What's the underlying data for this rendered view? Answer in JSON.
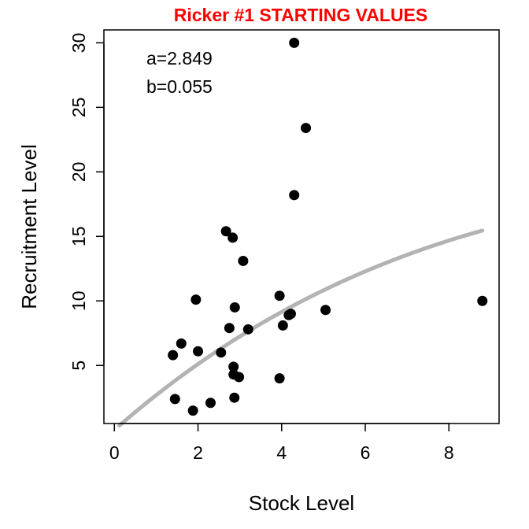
{
  "chart_data": {
    "type": "scatter",
    "title": "Ricker #1 STARTING VALUES",
    "xlabel": "Stock Level",
    "ylabel": "Recruitment Level",
    "xlim": [
      -0.25,
      9.2
    ],
    "ylim": [
      0.5,
      31.0
    ],
    "xticks": [
      0,
      2,
      4,
      6,
      8
    ],
    "yticks": [
      5,
      10,
      15,
      20,
      25,
      30
    ],
    "grid": false,
    "colors": {
      "title": "#ff0000",
      "points": "#000000",
      "curve": "#b3b3b3",
      "axes": "#000000"
    },
    "annotations": [
      "a=2.849",
      "b=0.055"
    ],
    "points": [
      {
        "x": 4.3,
        "y": 30.0
      },
      {
        "x": 4.58,
        "y": 23.4
      },
      {
        "x": 4.3,
        "y": 18.2
      },
      {
        "x": 2.67,
        "y": 15.4
      },
      {
        "x": 2.83,
        "y": 14.9
      },
      {
        "x": 3.08,
        "y": 13.1
      },
      {
        "x": 3.95,
        "y": 10.4
      },
      {
        "x": 1.95,
        "y": 10.1
      },
      {
        "x": 8.8,
        "y": 10.0
      },
      {
        "x": 2.88,
        "y": 9.5
      },
      {
        "x": 5.05,
        "y": 9.3
      },
      {
        "x": 4.17,
        "y": 8.9
      },
      {
        "x": 4.22,
        "y": 9.0
      },
      {
        "x": 4.03,
        "y": 8.1
      },
      {
        "x": 2.75,
        "y": 7.9
      },
      {
        "x": 3.2,
        "y": 7.8
      },
      {
        "x": 1.6,
        "y": 6.7
      },
      {
        "x": 2.0,
        "y": 6.1
      },
      {
        "x": 2.55,
        "y": 6.0
      },
      {
        "x": 1.4,
        "y": 5.8
      },
      {
        "x": 2.85,
        "y": 4.9
      },
      {
        "x": 2.85,
        "y": 4.3
      },
      {
        "x": 2.98,
        "y": 4.1
      },
      {
        "x": 3.95,
        "y": 4.0
      },
      {
        "x": 1.45,
        "y": 2.4
      },
      {
        "x": 2.87,
        "y": 2.5
      },
      {
        "x": 2.3,
        "y": 2.1
      },
      {
        "x": 1.88,
        "y": 1.5
      }
    ],
    "curve": {
      "model": "ricker",
      "a": 2.849,
      "b": 0.055,
      "x_range": [
        0.12,
        8.8
      ]
    }
  }
}
